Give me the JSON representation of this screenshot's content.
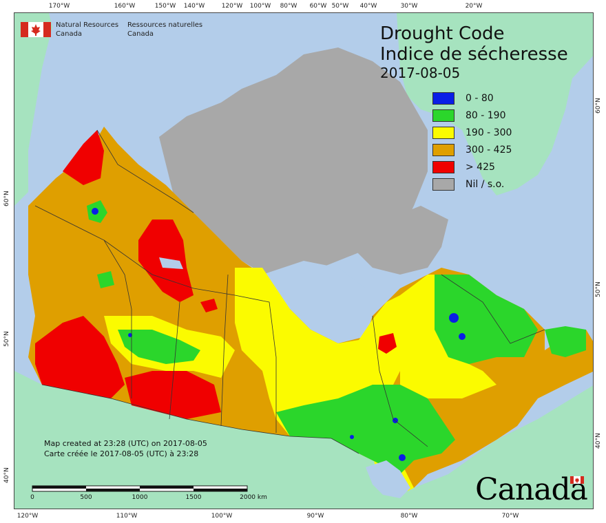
{
  "map": {
    "title_en": "Drought Code",
    "title_fr": "Indice de sécheresse",
    "date": "2017-08-05",
    "legend": [
      {
        "label": "0 - 80",
        "color": "#0a1ee6"
      },
      {
        "label": "80 - 190",
        "color": "#2bd62b"
      },
      {
        "label": "190 - 300",
        "color": "#fbfb00"
      },
      {
        "label": "300 - 425",
        "color": "#df9f00"
      },
      {
        "label": "> 425",
        "color": "#f00000"
      },
      {
        "label": "Nil / s.o.",
        "color": "#a8a8a8"
      }
    ],
    "agency_en_line1": "Natural Resources",
    "agency_en_line2": "Canada",
    "agency_fr_line1": "Ressources naturelles",
    "agency_fr_line2": "Canada",
    "credit_en": "Map created at 23:28 (UTC) on 2017-08-05",
    "credit_fr": "Carte créée le 2017-08-05 (UTC) à 23:28",
    "scale_labels": [
      "0",
      "500",
      "1000",
      "1500",
      "2000  km"
    ],
    "wordmark": "Canada",
    "top_ticks": [
      "170°W",
      "160°W",
      "150°W",
      "140°W",
      "120°W",
      "100°W",
      "80°W",
      "60°W",
      "50°W",
      "40°W",
      "30°W",
      "20°W"
    ],
    "bottom_ticks": [
      "120°W",
      "110°W",
      "100°W",
      "90°W",
      "80°W",
      "70°W"
    ],
    "left_ticks": [
      "60°N",
      "50°N",
      "40°N"
    ],
    "right_ticks": [
      "60°N",
      "50°N",
      "40°N"
    ],
    "colors": {
      "ocean": "#b3cdea",
      "foreign_land": "#a6e3bf",
      "nil": "#a8a8a8",
      "border": "#333333"
    }
  }
}
